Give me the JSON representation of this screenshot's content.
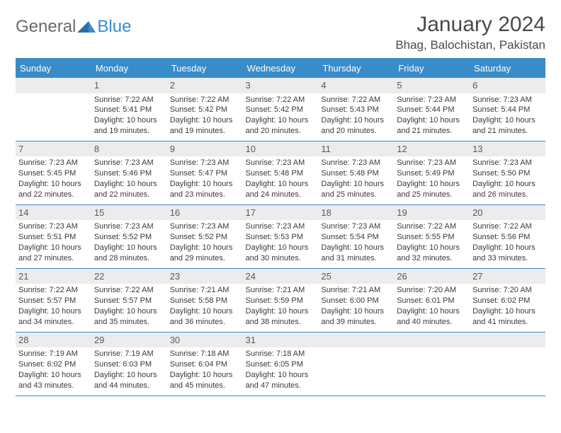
{
  "brand": {
    "word1": "General",
    "word2": "Blue"
  },
  "colors": {
    "header_bg": "#3a8cc8",
    "header_text": "#ffffff",
    "daynum_bg": "#ececec",
    "daynum_color": "#5a5a5a",
    "cell_text": "#3a3a3a",
    "cell_border": "#3a8cc8",
    "title_color": "#4a4a4a",
    "page_bg": "#ffffff"
  },
  "title": "January 2024",
  "location": "Bhag, Balochistan, Pakistan",
  "weekdays": [
    "Sunday",
    "Monday",
    "Tuesday",
    "Wednesday",
    "Thursday",
    "Friday",
    "Saturday"
  ],
  "weeks": [
    [
      {
        "day": "",
        "sunrise": "",
        "sunset": "",
        "daylight1": "",
        "daylight2": ""
      },
      {
        "day": "1",
        "sunrise": "Sunrise: 7:22 AM",
        "sunset": "Sunset: 5:41 PM",
        "daylight1": "Daylight: 10 hours",
        "daylight2": "and 19 minutes."
      },
      {
        "day": "2",
        "sunrise": "Sunrise: 7:22 AM",
        "sunset": "Sunset: 5:42 PM",
        "daylight1": "Daylight: 10 hours",
        "daylight2": "and 19 minutes."
      },
      {
        "day": "3",
        "sunrise": "Sunrise: 7:22 AM",
        "sunset": "Sunset: 5:42 PM",
        "daylight1": "Daylight: 10 hours",
        "daylight2": "and 20 minutes."
      },
      {
        "day": "4",
        "sunrise": "Sunrise: 7:22 AM",
        "sunset": "Sunset: 5:43 PM",
        "daylight1": "Daylight: 10 hours",
        "daylight2": "and 20 minutes."
      },
      {
        "day": "5",
        "sunrise": "Sunrise: 7:23 AM",
        "sunset": "Sunset: 5:44 PM",
        "daylight1": "Daylight: 10 hours",
        "daylight2": "and 21 minutes."
      },
      {
        "day": "6",
        "sunrise": "Sunrise: 7:23 AM",
        "sunset": "Sunset: 5:44 PM",
        "daylight1": "Daylight: 10 hours",
        "daylight2": "and 21 minutes."
      }
    ],
    [
      {
        "day": "7",
        "sunrise": "Sunrise: 7:23 AM",
        "sunset": "Sunset: 5:45 PM",
        "daylight1": "Daylight: 10 hours",
        "daylight2": "and 22 minutes."
      },
      {
        "day": "8",
        "sunrise": "Sunrise: 7:23 AM",
        "sunset": "Sunset: 5:46 PM",
        "daylight1": "Daylight: 10 hours",
        "daylight2": "and 22 minutes."
      },
      {
        "day": "9",
        "sunrise": "Sunrise: 7:23 AM",
        "sunset": "Sunset: 5:47 PM",
        "daylight1": "Daylight: 10 hours",
        "daylight2": "and 23 minutes."
      },
      {
        "day": "10",
        "sunrise": "Sunrise: 7:23 AM",
        "sunset": "Sunset: 5:48 PM",
        "daylight1": "Daylight: 10 hours",
        "daylight2": "and 24 minutes."
      },
      {
        "day": "11",
        "sunrise": "Sunrise: 7:23 AM",
        "sunset": "Sunset: 5:48 PM",
        "daylight1": "Daylight: 10 hours",
        "daylight2": "and 25 minutes."
      },
      {
        "day": "12",
        "sunrise": "Sunrise: 7:23 AM",
        "sunset": "Sunset: 5:49 PM",
        "daylight1": "Daylight: 10 hours",
        "daylight2": "and 25 minutes."
      },
      {
        "day": "13",
        "sunrise": "Sunrise: 7:23 AM",
        "sunset": "Sunset: 5:50 PM",
        "daylight1": "Daylight: 10 hours",
        "daylight2": "and 26 minutes."
      }
    ],
    [
      {
        "day": "14",
        "sunrise": "Sunrise: 7:23 AM",
        "sunset": "Sunset: 5:51 PM",
        "daylight1": "Daylight: 10 hours",
        "daylight2": "and 27 minutes."
      },
      {
        "day": "15",
        "sunrise": "Sunrise: 7:23 AM",
        "sunset": "Sunset: 5:52 PM",
        "daylight1": "Daylight: 10 hours",
        "daylight2": "and 28 minutes."
      },
      {
        "day": "16",
        "sunrise": "Sunrise: 7:23 AM",
        "sunset": "Sunset: 5:52 PM",
        "daylight1": "Daylight: 10 hours",
        "daylight2": "and 29 minutes."
      },
      {
        "day": "17",
        "sunrise": "Sunrise: 7:23 AM",
        "sunset": "Sunset: 5:53 PM",
        "daylight1": "Daylight: 10 hours",
        "daylight2": "and 30 minutes."
      },
      {
        "day": "18",
        "sunrise": "Sunrise: 7:23 AM",
        "sunset": "Sunset: 5:54 PM",
        "daylight1": "Daylight: 10 hours",
        "daylight2": "and 31 minutes."
      },
      {
        "day": "19",
        "sunrise": "Sunrise: 7:22 AM",
        "sunset": "Sunset: 5:55 PM",
        "daylight1": "Daylight: 10 hours",
        "daylight2": "and 32 minutes."
      },
      {
        "day": "20",
        "sunrise": "Sunrise: 7:22 AM",
        "sunset": "Sunset: 5:56 PM",
        "daylight1": "Daylight: 10 hours",
        "daylight2": "and 33 minutes."
      }
    ],
    [
      {
        "day": "21",
        "sunrise": "Sunrise: 7:22 AM",
        "sunset": "Sunset: 5:57 PM",
        "daylight1": "Daylight: 10 hours",
        "daylight2": "and 34 minutes."
      },
      {
        "day": "22",
        "sunrise": "Sunrise: 7:22 AM",
        "sunset": "Sunset: 5:57 PM",
        "daylight1": "Daylight: 10 hours",
        "daylight2": "and 35 minutes."
      },
      {
        "day": "23",
        "sunrise": "Sunrise: 7:21 AM",
        "sunset": "Sunset: 5:58 PM",
        "daylight1": "Daylight: 10 hours",
        "daylight2": "and 36 minutes."
      },
      {
        "day": "24",
        "sunrise": "Sunrise: 7:21 AM",
        "sunset": "Sunset: 5:59 PM",
        "daylight1": "Daylight: 10 hours",
        "daylight2": "and 38 minutes."
      },
      {
        "day": "25",
        "sunrise": "Sunrise: 7:21 AM",
        "sunset": "Sunset: 6:00 PM",
        "daylight1": "Daylight: 10 hours",
        "daylight2": "and 39 minutes."
      },
      {
        "day": "26",
        "sunrise": "Sunrise: 7:20 AM",
        "sunset": "Sunset: 6:01 PM",
        "daylight1": "Daylight: 10 hours",
        "daylight2": "and 40 minutes."
      },
      {
        "day": "27",
        "sunrise": "Sunrise: 7:20 AM",
        "sunset": "Sunset: 6:02 PM",
        "daylight1": "Daylight: 10 hours",
        "daylight2": "and 41 minutes."
      }
    ],
    [
      {
        "day": "28",
        "sunrise": "Sunrise: 7:19 AM",
        "sunset": "Sunset: 6:02 PM",
        "daylight1": "Daylight: 10 hours",
        "daylight2": "and 43 minutes."
      },
      {
        "day": "29",
        "sunrise": "Sunrise: 7:19 AM",
        "sunset": "Sunset: 6:03 PM",
        "daylight1": "Daylight: 10 hours",
        "daylight2": "and 44 minutes."
      },
      {
        "day": "30",
        "sunrise": "Sunrise: 7:18 AM",
        "sunset": "Sunset: 6:04 PM",
        "daylight1": "Daylight: 10 hours",
        "daylight2": "and 45 minutes."
      },
      {
        "day": "31",
        "sunrise": "Sunrise: 7:18 AM",
        "sunset": "Sunset: 6:05 PM",
        "daylight1": "Daylight: 10 hours",
        "daylight2": "and 47 minutes."
      },
      {
        "day": "",
        "sunrise": "",
        "sunset": "",
        "daylight1": "",
        "daylight2": ""
      },
      {
        "day": "",
        "sunrise": "",
        "sunset": "",
        "daylight1": "",
        "daylight2": ""
      },
      {
        "day": "",
        "sunrise": "",
        "sunset": "",
        "daylight1": "",
        "daylight2": ""
      }
    ]
  ]
}
